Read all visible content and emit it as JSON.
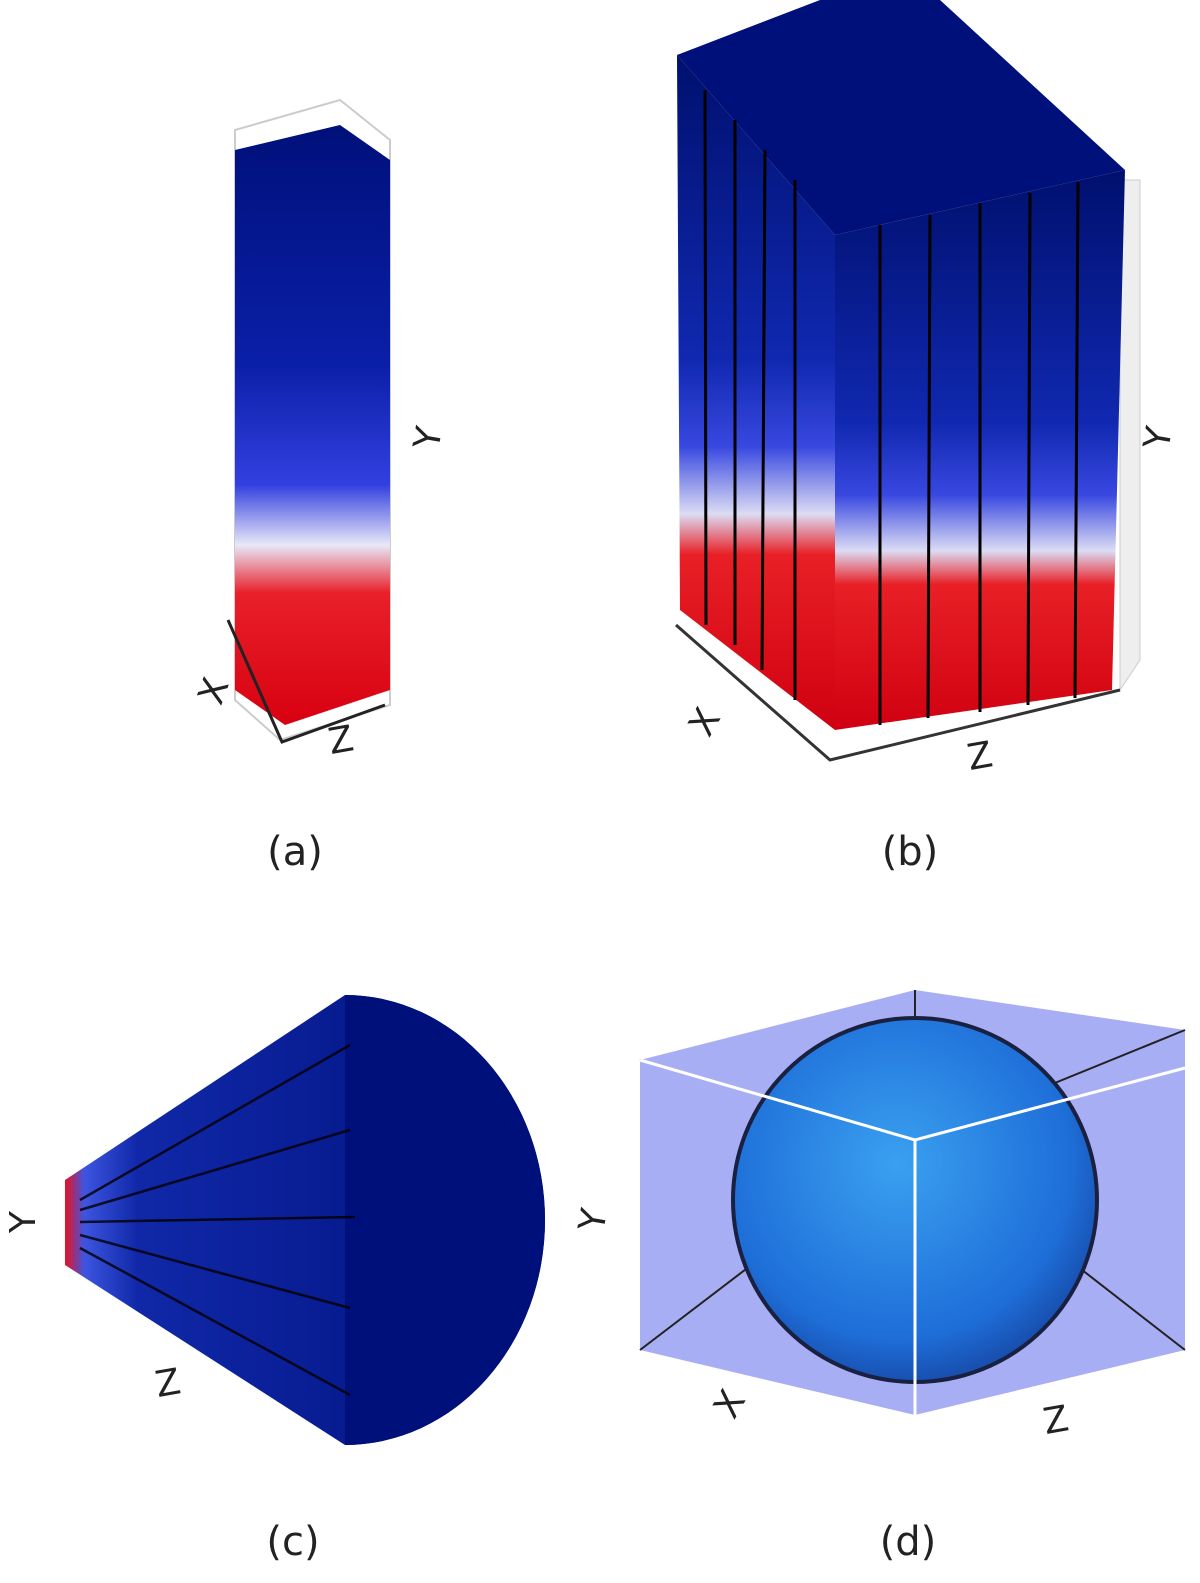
{
  "panels": [
    {
      "caption": "(a)",
      "axes": {
        "x": "X",
        "y": "Y",
        "z": "Z"
      }
    },
    {
      "caption": "(b)",
      "axes": {
        "x": "X",
        "y": "Y",
        "z": "Z"
      }
    },
    {
      "caption": "(c)",
      "axes": {
        "y": "Y",
        "z": "Z"
      }
    },
    {
      "caption": "(d)",
      "axes": {
        "x": "X",
        "y": "Y",
        "z": "Z"
      }
    }
  ]
}
